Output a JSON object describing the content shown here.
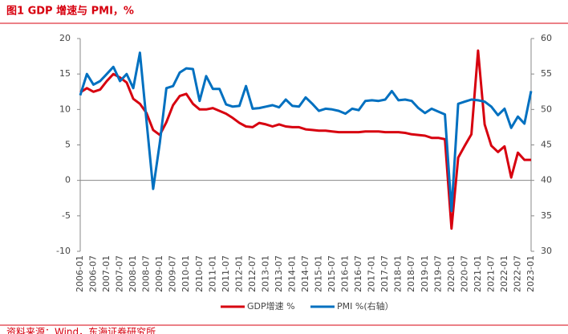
{
  "chart_data": {
    "type": "line",
    "title": "图1  GDP 增速与 PMI，%",
    "source": "资料来源：Wind，东海证券研究所",
    "categories": [
      "2006-01",
      null,
      "2006-07",
      null,
      "2007-01",
      null,
      "2007-07",
      null,
      "2008-01",
      null,
      "2008-07",
      null,
      "2009-01",
      null,
      "2009-07",
      null,
      "2010-01",
      null,
      "2010-07",
      null,
      "2011-01",
      null,
      "2011-07",
      null,
      "2012-01",
      null,
      "2012-07",
      null,
      "2013-01",
      null,
      "2013-07",
      null,
      "2014-01",
      null,
      "2014-07",
      null,
      "2015-01",
      null,
      "2015-07",
      null,
      "2016-01",
      null,
      "2016-07",
      null,
      "2017-01",
      null,
      "2017-07",
      null,
      "2018-01",
      null,
      "2018-07",
      null,
      "2019-01",
      null,
      "2019-07",
      null,
      "2020-01",
      null,
      "2020-07",
      null,
      "2021-01",
      null,
      "2021-07",
      null,
      "2022-01",
      null,
      "2022-07",
      null,
      "2023-01"
    ],
    "series": [
      {
        "name": "GDP增速 %",
        "color": "#d7000f",
        "axis": "y",
        "values": [
          12.4,
          13.0,
          12.5,
          12.8,
          14.0,
          15.0,
          14.5,
          13.8,
          11.5,
          10.8,
          9.5,
          7.1,
          6.4,
          8.2,
          10.6,
          11.9,
          12.2,
          10.8,
          10.0,
          10.0,
          10.2,
          9.8,
          9.4,
          8.8,
          8.1,
          7.6,
          7.5,
          8.1,
          7.9,
          7.6,
          7.9,
          7.6,
          7.5,
          7.5,
          7.2,
          7.1,
          7.0,
          7.0,
          6.9,
          6.8,
          6.8,
          6.8,
          6.8,
          6.9,
          6.9,
          6.9,
          6.8,
          6.8,
          6.8,
          6.7,
          6.5,
          6.4,
          6.3,
          6.0,
          6.0,
          5.8,
          -6.8,
          3.2,
          4.9,
          6.5,
          18.3,
          7.9,
          4.9,
          4.0,
          4.8,
          0.4,
          3.9,
          2.9,
          2.9
        ]
      },
      {
        "name": "PMI %(右轴）",
        "color": "#0070c0",
        "axis": "y2",
        "values": [
          52.0,
          55.0,
          53.5,
          54.0,
          55.0,
          56.0,
          54.0,
          55.0,
          53.0,
          58.0,
          48.4,
          38.8,
          45.3,
          53.0,
          53.3,
          55.2,
          55.8,
          55.7,
          51.2,
          54.7,
          52.9,
          52.9,
          50.7,
          50.4,
          50.5,
          53.3,
          50.1,
          50.2,
          50.4,
          50.6,
          50.3,
          51.4,
          50.5,
          50.4,
          51.7,
          50.8,
          49.8,
          50.1,
          50.0,
          49.8,
          49.4,
          50.1,
          49.9,
          51.2,
          51.3,
          51.2,
          51.4,
          52.6,
          51.3,
          51.4,
          51.2,
          50.2,
          49.5,
          50.1,
          49.7,
          49.3,
          35.7,
          50.8,
          51.1,
          51.4,
          51.3,
          51.1,
          50.4,
          49.2,
          50.1,
          47.4,
          49.0,
          48.0,
          52.6
        ]
      }
    ],
    "ylim": [
      -10,
      20
    ],
    "yticks": [
      -10,
      -5,
      0,
      5,
      10,
      15,
      20
    ],
    "y2lim": [
      30,
      60
    ],
    "y2ticks": [
      30,
      35,
      40,
      45,
      50,
      55,
      60
    ],
    "legend": "bottom"
  }
}
